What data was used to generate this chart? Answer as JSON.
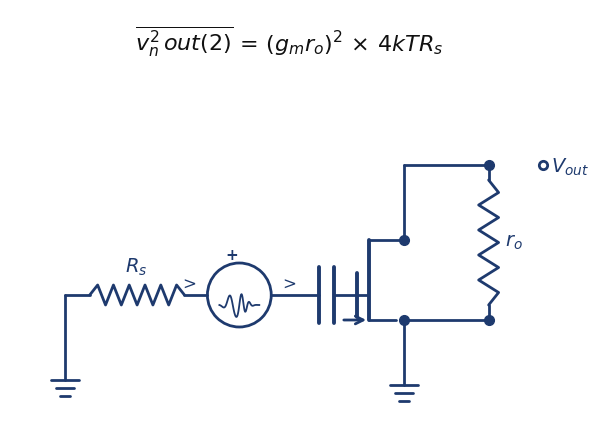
{
  "circuit_color": "#1e3a6e",
  "background_color": "#ffffff",
  "fig_width": 6.0,
  "fig_height": 4.37,
  "dpi": 100,
  "lw": 2.0,
  "dot_size": 7
}
